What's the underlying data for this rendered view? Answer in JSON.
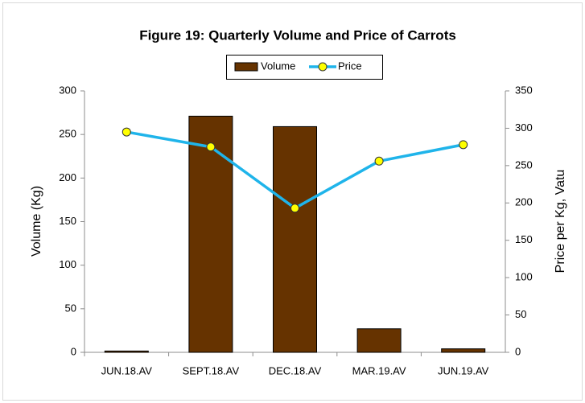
{
  "chart_data": {
    "type": "bar",
    "title": "Figure 19: Quarterly Volume and Price of Carrots",
    "categories": [
      "JUN.18.AV",
      "SEPT.18.AV",
      "DEC.18.AV",
      "MAR.19.AV",
      "JUN.19.AV"
    ],
    "series": [
      {
        "name": "Volume",
        "type": "bar",
        "color": "#663300",
        "values": [
          1.5,
          271,
          259,
          27,
          4
        ]
      },
      {
        "name": "Price",
        "type": "line",
        "axis": "y2",
        "color": "#1fb4ea",
        "marker_color": "#ffff00",
        "values": [
          295,
          275,
          193,
          256,
          278
        ]
      }
    ],
    "ylabel": "Volume (Kg)",
    "y2label": "Price per Kg, Vatu",
    "ylim": [
      0,
      300
    ],
    "yticks": [
      0,
      50,
      100,
      150,
      200,
      250,
      300
    ],
    "y2lim": [
      0,
      350
    ],
    "y2ticks": [
      0,
      50,
      100,
      150,
      200,
      250,
      300,
      350
    ],
    "legend": "top"
  }
}
